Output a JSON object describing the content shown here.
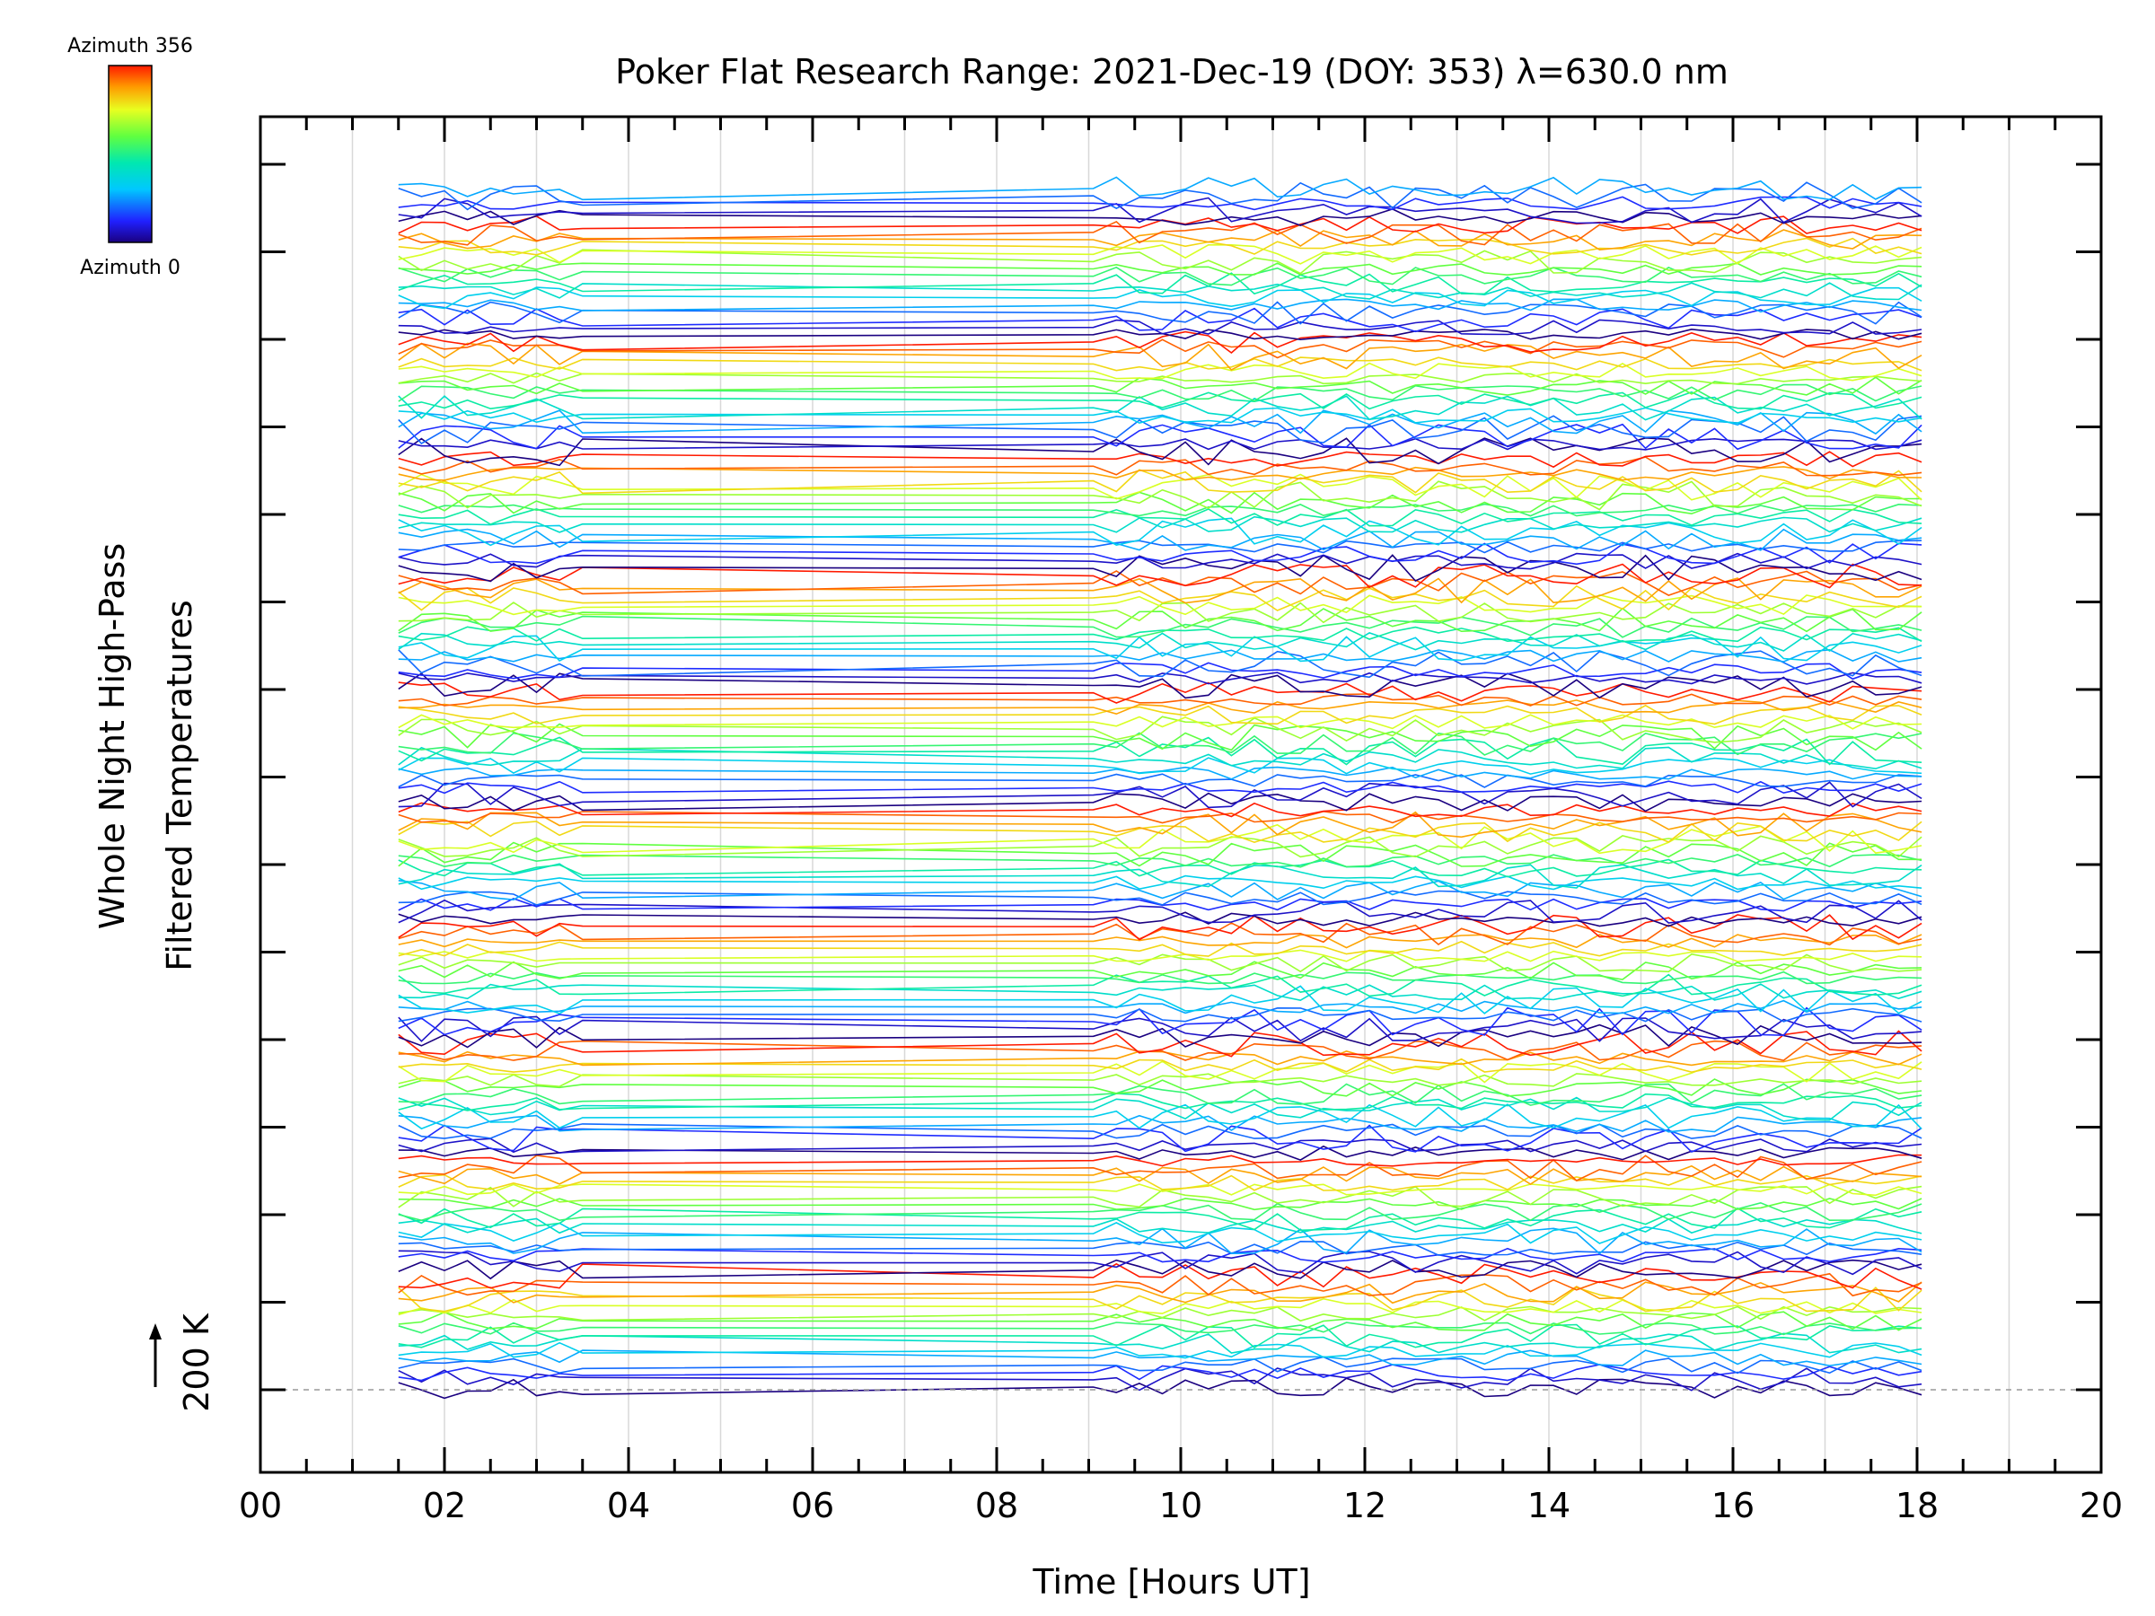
{
  "chart_data": {
    "type": "line",
    "title": "Poker Flat Research Range: 2021-Dec-19 (DOY: 353) λ=630.0 nm",
    "xlabel": "Time [Hours UT]",
    "ylabel_line1": "Whole Night High-Pass",
    "ylabel_line2": "Filtered Temperatures",
    "xlim": [
      0,
      20
    ],
    "x_ticks": [
      "00",
      "02",
      "04",
      "06",
      "08",
      "10",
      "12",
      "14",
      "16",
      "18",
      "20"
    ],
    "y_units": "stacked offset traces (each trace shifted by a constant; data values not printed)",
    "scale_bar_label": "200 K",
    "colorbar": {
      "top_label": "Azimuth 356",
      "bottom_label": "Azimuth 0",
      "colormap": "rainbow (blue at 0, through cyan, green, yellow, orange to red at 356)"
    },
    "trace_count": 165,
    "time_range_hours": [
      1.5,
      18.25
    ],
    "data_gap_hours": [
      3.7,
      9.05
    ],
    "grid": "vertical light gray lines every 0.5 hour",
    "baseline": "dashed gray reference line at lowest trace"
  }
}
